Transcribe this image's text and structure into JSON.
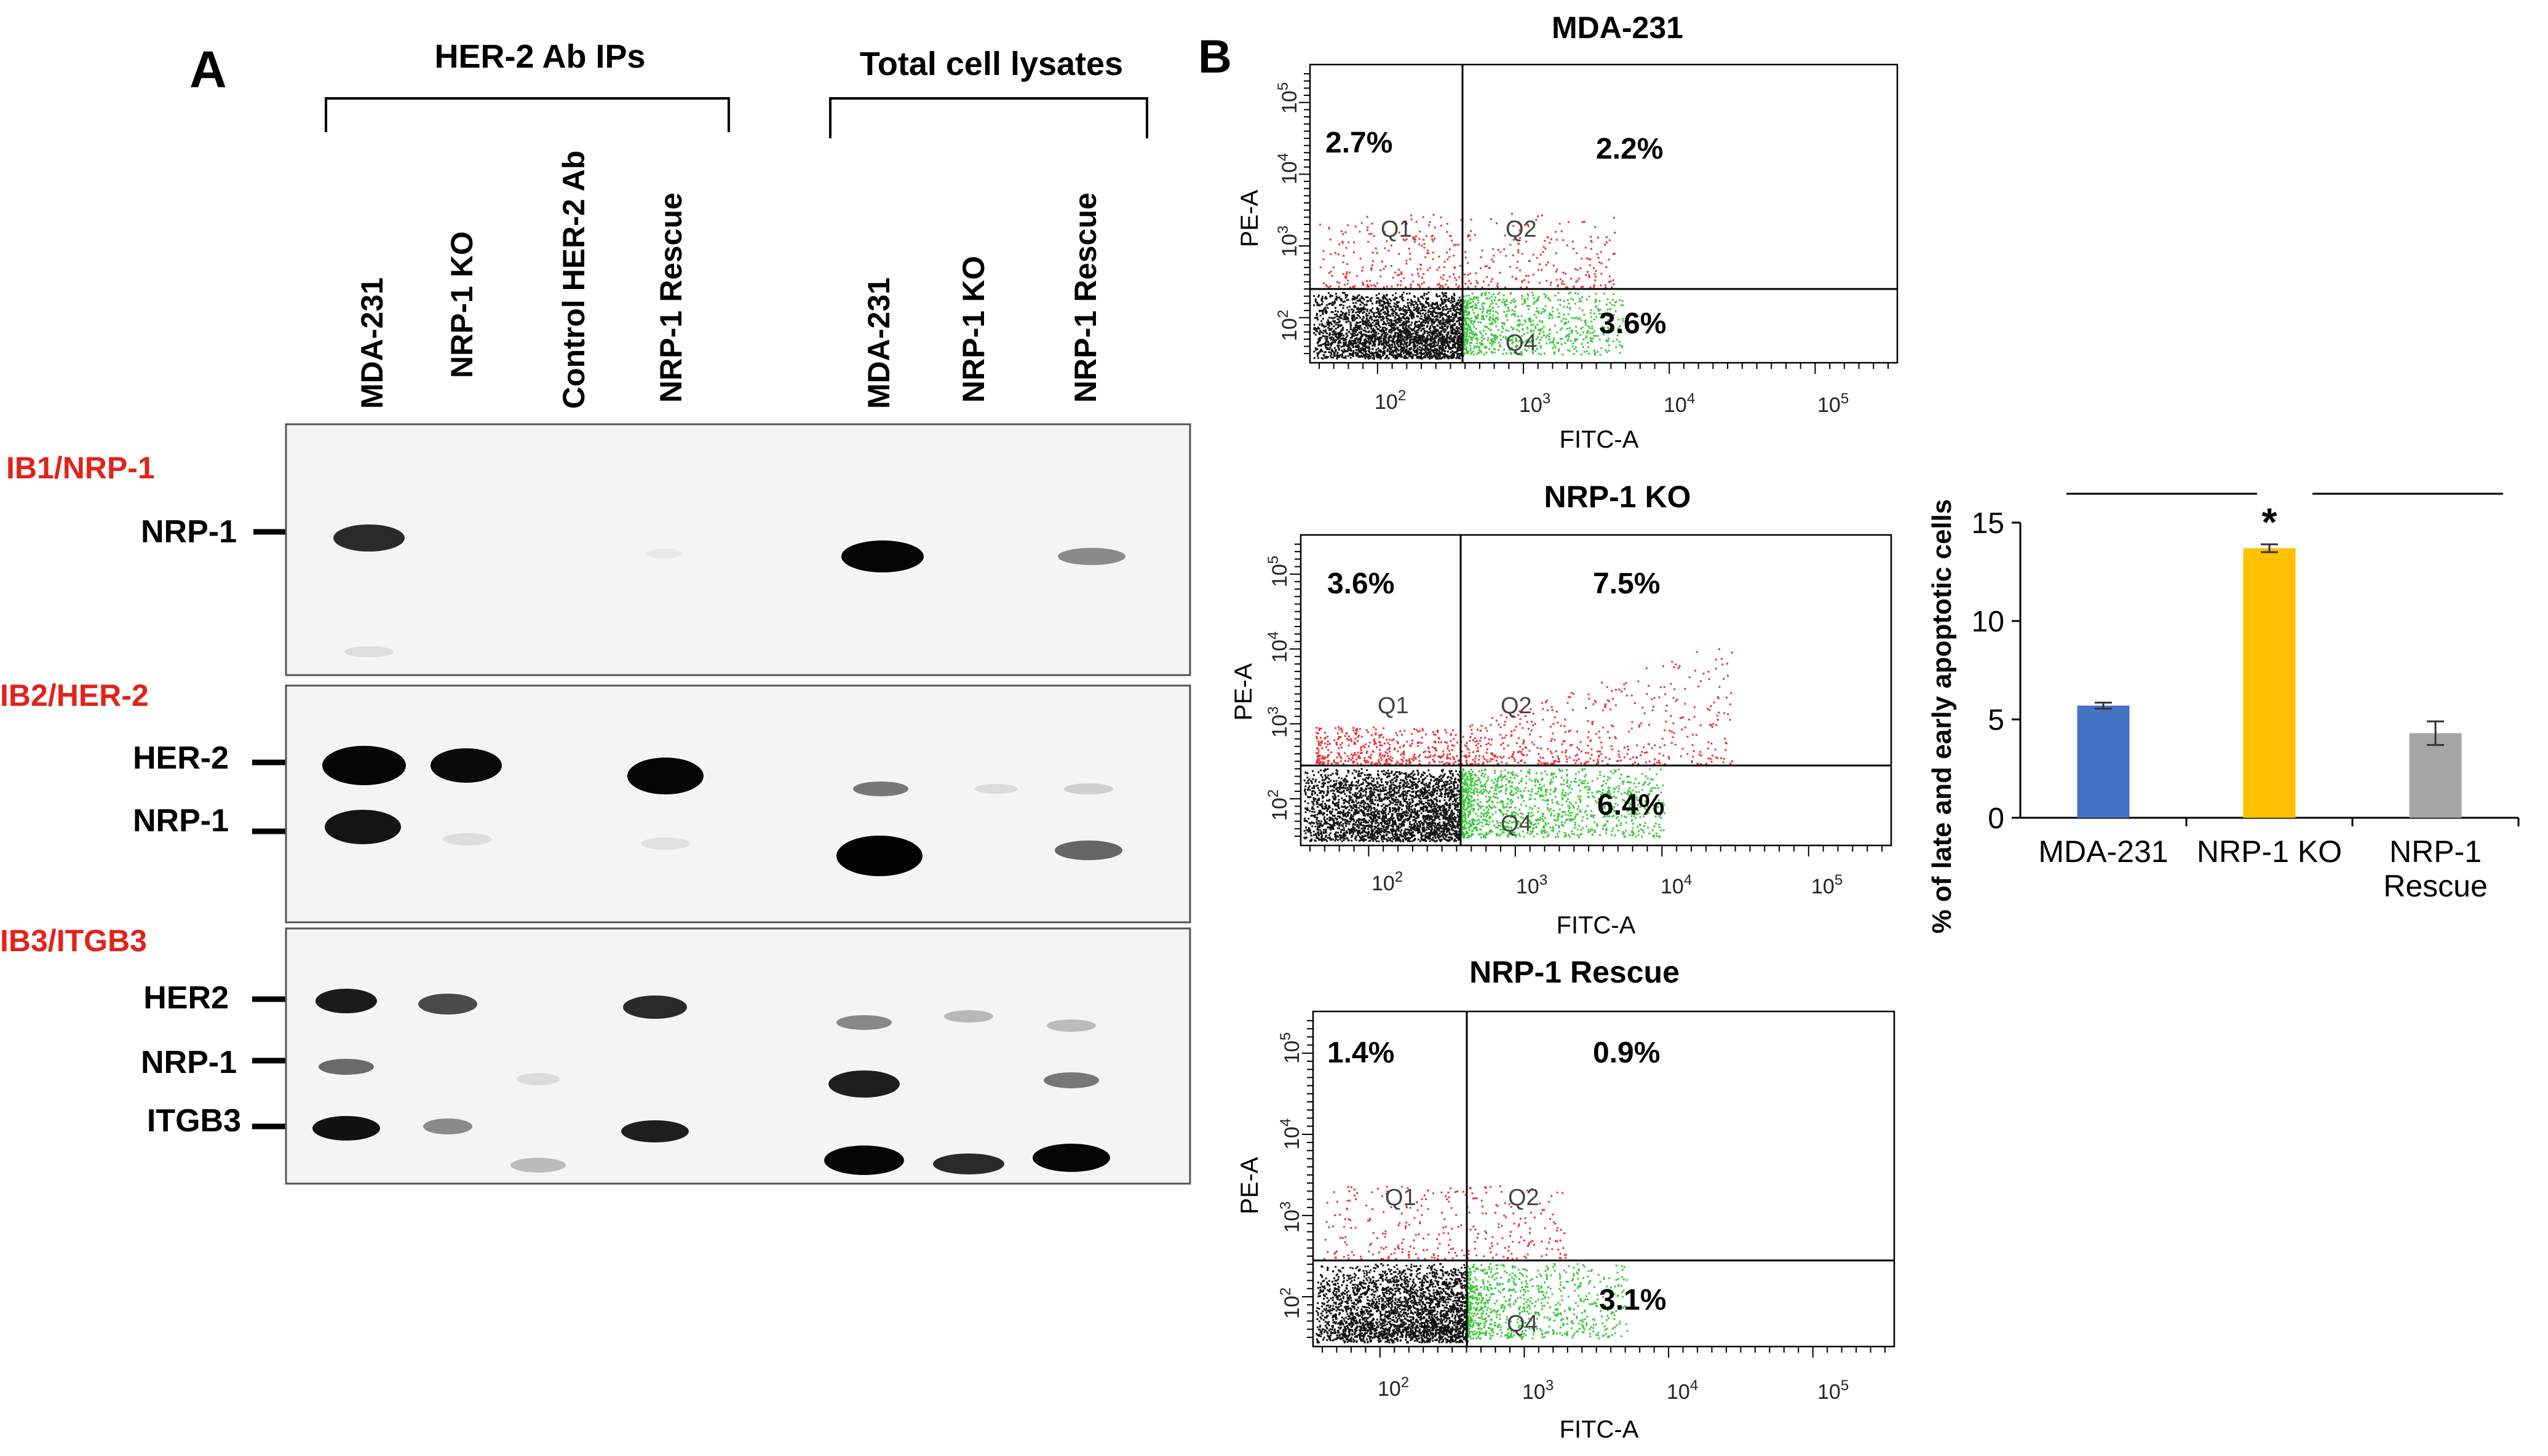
{
  "panel_a": {
    "label": "A",
    "groups": [
      "HER-2 Ab IPs",
      "Total cell lysates"
    ],
    "lanes": [
      "MDA-231",
      "NRP-1 KO",
      "Control HER-2 Ab",
      "NRP-1 Rescue",
      "MDA-231",
      "NRP-1 KO",
      "NRP-1 Rescue"
    ],
    "blots": [
      {
        "title": "IB1/NRP-1",
        "markers": [
          "NRP-1"
        ]
      },
      {
        "title": "IB2/HER-2",
        "markers": [
          "HER-2",
          "NRP-1"
        ]
      },
      {
        "title": "IB3/ITGB3",
        "markers": [
          "HER2",
          "NRP-1",
          "ITGB3"
        ]
      }
    ],
    "colors": {
      "title_red": "#e2231a"
    }
  },
  "panel_b": {
    "label": "B",
    "flow_plots": [
      {
        "title": "MDA-231",
        "q1_pct": "2.7%",
        "q2_pct": "2.2%",
        "q4_pct": "3.6%"
      },
      {
        "title": "NRP-1 KO",
        "q1_pct": "3.6%",
        "q2_pct": "7.5%",
        "q4_pct": "6.4%"
      },
      {
        "title": "NRP-1 Rescue",
        "q1_pct": "1.4%",
        "q2_pct": "0.9%",
        "q4_pct": "3.1%"
      }
    ],
    "flow_axes": {
      "x_label": "FITC-A",
      "y_label": "PE-A",
      "ticks": [
        "10",
        "10",
        "10",
        "10"
      ],
      "tick_exps": [
        "2",
        "3",
        "4",
        "5"
      ],
      "quadrants": [
        "Q1",
        "Q2",
        "Q4"
      ]
    },
    "colors": {
      "q1_q2_dots": "#e8353a",
      "q4_dots": "#3cc83c",
      "q3_dots": "#111111"
    }
  },
  "chart_data": {
    "type": "bar",
    "title": "",
    "categories": [
      "MDA-231",
      "NRP-1 KO",
      "NRP-1 Rescue"
    ],
    "category_lines": [
      [
        "MDA-231"
      ],
      [
        "NRP-1 KO"
      ],
      [
        "NRP-1",
        "Rescue"
      ]
    ],
    "values": [
      5.7,
      13.7,
      4.3
    ],
    "errors": [
      0.15,
      0.2,
      0.6
    ],
    "colors": [
      "#4472c4",
      "#ffc000",
      "#a5a5a5"
    ],
    "xlabel": "",
    "ylabel": "% of late and early apoptotic cells",
    "ylim": [
      0,
      15
    ],
    "yticks": [
      "0",
      "5",
      "10",
      "15"
    ],
    "ytick_values": [
      0,
      5,
      10,
      15
    ],
    "significance": "*",
    "grid": false
  }
}
